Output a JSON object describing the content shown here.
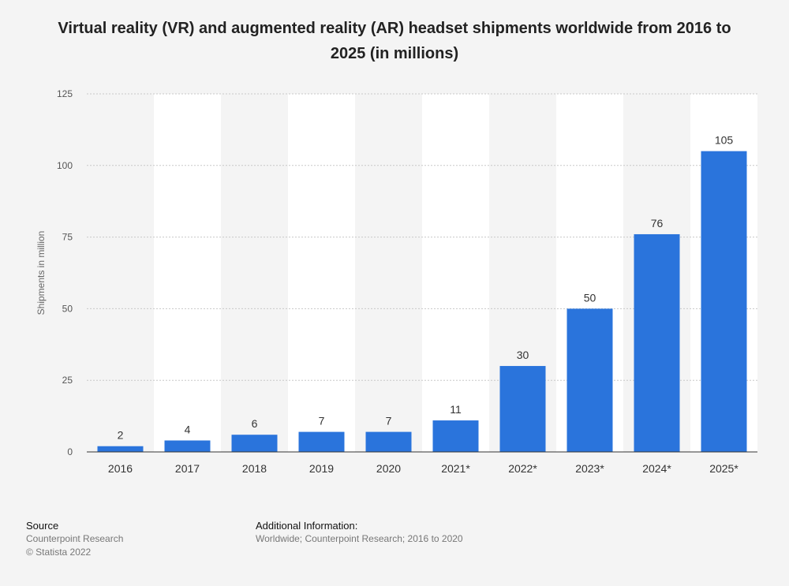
{
  "title": "Virtual reality (VR) and augmented reality (AR) headset shipments worldwide from 2016 to 2025 (in millions)",
  "chart_data": {
    "type": "bar",
    "categories": [
      "2016",
      "2017",
      "2018",
      "2019",
      "2020",
      "2021*",
      "2022*",
      "2023*",
      "2024*",
      "2025*"
    ],
    "values": [
      2,
      4,
      6,
      7,
      7,
      11,
      30,
      50,
      76,
      105
    ],
    "ylabel": "Shipments in million",
    "xlabel": "",
    "ylim": [
      0,
      125
    ],
    "yticks": [
      0,
      25,
      50,
      75,
      100,
      125
    ],
    "grid": true,
    "bar_color": "#2a74dc"
  },
  "footer": {
    "source_heading": "Source",
    "source_lines": [
      "Counterpoint Research",
      "© Statista 2022"
    ],
    "info_heading": "Additional Information:",
    "info_text": "Worldwide; Counterpoint Research; 2016 to 2020"
  }
}
